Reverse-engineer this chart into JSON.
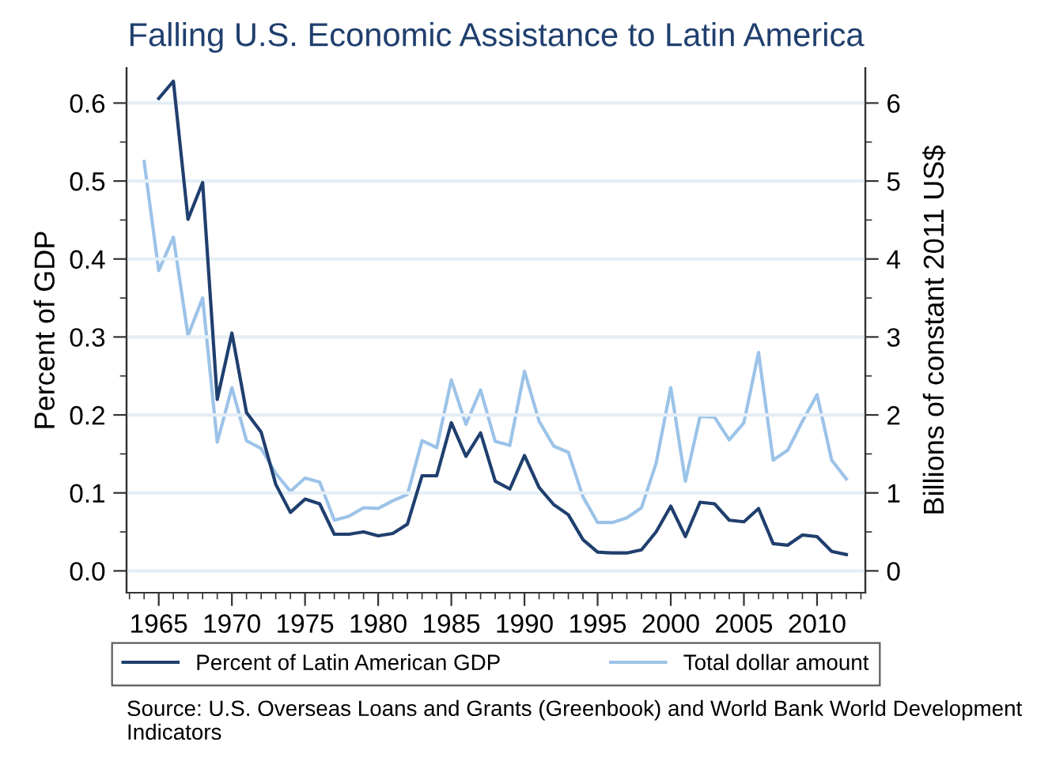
{
  "chart_data": {
    "type": "line",
    "title": "Falling U.S. Economic Assistance to Latin America",
    "ylabel": "Percent of GDP",
    "y2label": "Billions of constant 2011 US$",
    "x": [
      1964,
      1965,
      1966,
      1967,
      1968,
      1969,
      1970,
      1971,
      1972,
      1973,
      1974,
      1975,
      1976,
      1977,
      1978,
      1979,
      1980,
      1981,
      1982,
      1983,
      1984,
      1985,
      1986,
      1987,
      1988,
      1989,
      1990,
      1991,
      1992,
      1993,
      1994,
      1995,
      1996,
      1997,
      1998,
      1999,
      2000,
      2001,
      2002,
      2003,
      2004,
      2005,
      2006,
      2007,
      2008,
      2009,
      2010,
      2011,
      2012
    ],
    "series": [
      {
        "name": "Percent of Latin American GDP",
        "color": "#1f3f6e",
        "values": [
          null,
          0.606,
          0.628,
          0.451,
          0.498,
          0.22,
          0.305,
          0.203,
          0.178,
          0.111,
          0.075,
          0.092,
          0.086,
          0.047,
          0.047,
          0.05,
          0.045,
          0.048,
          0.06,
          0.122,
          0.122,
          0.19,
          0.147,
          0.177,
          0.115,
          0.105,
          0.148,
          0.107,
          0.085,
          0.072,
          0.04,
          0.024,
          0.023,
          0.023,
          0.027,
          0.05,
          0.083,
          0.044,
          0.088,
          0.086,
          0.065,
          0.063,
          0.08,
          0.035,
          0.033,
          0.046,
          0.044,
          0.025,
          0.021
        ]
      },
      {
        "name": "Total dollar amount",
        "color": "#9cc3e8",
        "axis": "y2",
        "values": [
          5.25,
          3.85,
          4.28,
          3.02,
          3.5,
          1.65,
          2.35,
          1.67,
          1.57,
          1.25,
          1.02,
          1.19,
          1.14,
          0.65,
          0.7,
          0.81,
          0.8,
          0.9,
          0.98,
          1.67,
          1.58,
          2.45,
          1.88,
          2.32,
          1.66,
          1.61,
          2.56,
          1.92,
          1.6,
          1.52,
          0.95,
          0.62,
          0.62,
          0.68,
          0.81,
          1.38,
          2.35,
          1.15,
          1.98,
          1.97,
          1.68,
          1.9,
          2.8,
          1.42,
          1.55,
          1.92,
          2.26,
          1.42,
          1.18
        ]
      }
    ],
    "xlim": [
      1962.8,
      2013.3
    ],
    "xticks": [
      1965,
      1970,
      1975,
      1980,
      1985,
      1990,
      1995,
      2000,
      2005,
      2010
    ],
    "ylim": [
      -0.028,
      0.645
    ],
    "yticks": [
      {
        "value": 0,
        "label": "0.0"
      },
      {
        "value": 0.1,
        "label": "0.1"
      },
      {
        "value": 0.2,
        "label": "0.2"
      },
      {
        "value": 0.3,
        "label": "0.3"
      },
      {
        "value": 0.4,
        "label": "0.4"
      },
      {
        "value": 0.5,
        "label": "0.5"
      },
      {
        "value": 0.6,
        "label": "0.6"
      }
    ],
    "y2lim": [
      -0.28,
      6.45
    ],
    "y2ticks": [
      0,
      1,
      2,
      3,
      4,
      5,
      6
    ],
    "grid": "y",
    "legend": "bottom",
    "marker": "none",
    "line_style": "solid",
    "annotations": [
      "Source: U.S. Overseas Loans and Grants (Greenbook) and World Bank World Development Indicators"
    ]
  }
}
